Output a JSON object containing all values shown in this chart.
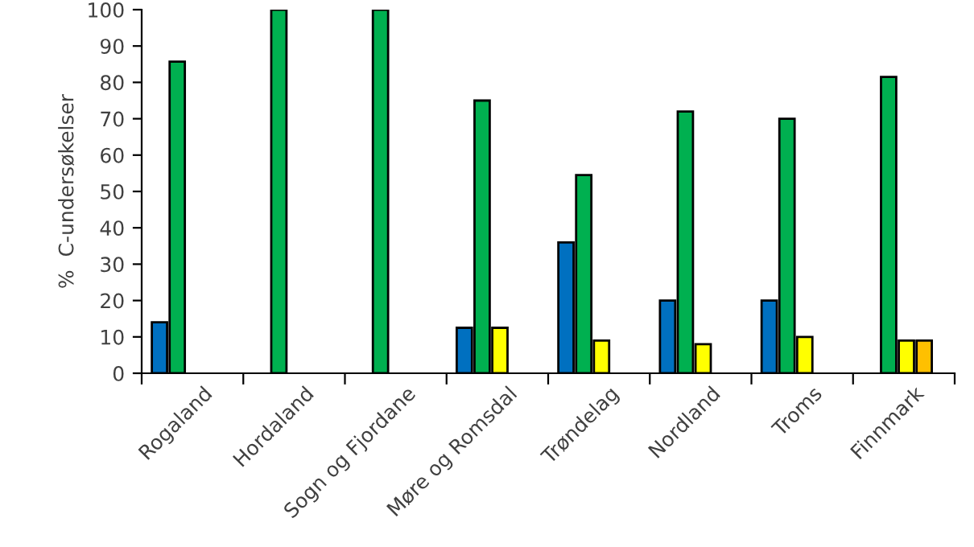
{
  "chart_data": {
    "type": "bar",
    "ylabel": "%  C-undersøkelser",
    "categories": [
      "Rogaland",
      "Hordaland",
      "Sogn og Fjordane",
      "Møre og Romsdal",
      "Trøndelag",
      "Nordland",
      "Troms",
      "Finnmark"
    ],
    "series": [
      {
        "color": "#0070c0",
        "values": [
          14,
          null,
          null,
          12.5,
          36,
          20,
          20,
          null
        ]
      },
      {
        "color": "#00b050",
        "values": [
          85.7,
          100,
          100,
          75,
          54.5,
          72,
          70,
          81.5
        ]
      },
      {
        "color": "#ffff00",
        "values": [
          null,
          null,
          null,
          12.5,
          9,
          8,
          10,
          9
        ]
      },
      {
        "color": "#ffc000",
        "values": [
          null,
          null,
          null,
          null,
          null,
          null,
          null,
          9
        ]
      }
    ],
    "ylim": [
      0,
      100
    ],
    "yticks": [
      0,
      10,
      20,
      30,
      40,
      50,
      60,
      70,
      80,
      90,
      100
    ],
    "grid": false
  }
}
